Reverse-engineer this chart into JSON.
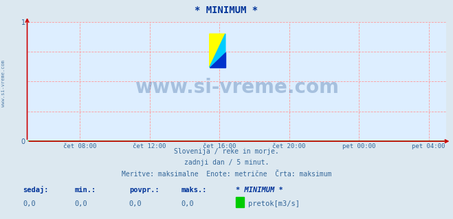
{
  "title": "* MINIMUM *",
  "bg_color": "#dce8f0",
  "plot_bg_color": "#ddeeff",
  "grid_color": "#ff9999",
  "axis_color": "#cc0000",
  "x_tick_labels": [
    "čet 08:00",
    "čet 12:00",
    "čet 16:00",
    "čet 20:00",
    "pet 00:00",
    "pet 04:00"
  ],
  "x_tick_positions": [
    0.125,
    0.292,
    0.458,
    0.625,
    0.792,
    0.958
  ],
  "ylim": [
    0,
    1
  ],
  "yticks": [
    0,
    1
  ],
  "watermark": "www.si-vreme.com",
  "watermark_color": "#1a4a8a",
  "watermark_alpha": 0.28,
  "subtitle1": "Slovenija / reke in morje.",
  "subtitle2": "zadnji dan / 5 minut.",
  "subtitle3": "Meritve: maksimalne  Enote: metrične  Črta: maksimum",
  "subtitle_color": "#336699",
  "left_label": "www.si-vreme.com",
  "left_label_color": "#336699",
  "legend_labels": [
    "sedaj:",
    "min.:",
    "povpr.:",
    "maks.:",
    "* MINIMUM *"
  ],
  "legend_values": [
    "0,0",
    "0,0",
    "0,0",
    "0,0"
  ],
  "legend_color": "#003399",
  "legend_value_color": "#336699",
  "series_color": "#00cc00",
  "series_label": "pretok[m3/s]",
  "title_color": "#003399",
  "title_fontsize": 10,
  "logo_yellow": "#ffff00",
  "logo_cyan": "#00ccff",
  "logo_blue": "#0033cc"
}
